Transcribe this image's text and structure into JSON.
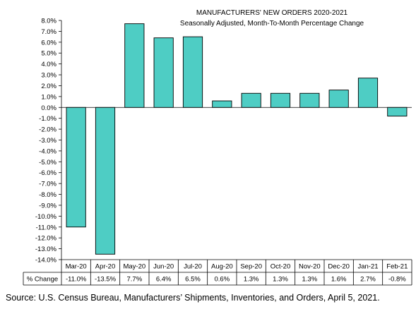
{
  "chart_data": {
    "type": "bar",
    "title": "MANUFACTURERS' NEW ORDERS 2020-2021",
    "subtitle": "Seasonally Adjusted,  Month-To-Month Percentage Change",
    "categories": [
      "Mar-20",
      "Apr-20",
      "May-20",
      "Jun-20",
      "Jul-20",
      "Aug-20",
      "Sep-20",
      "Oct-20",
      "Nov-20",
      "Dec-20",
      "Jan-21",
      "Feb-21"
    ],
    "values": [
      -11.0,
      -13.5,
      7.7,
      6.4,
      6.5,
      0.6,
      1.3,
      1.3,
      1.3,
      1.6,
      2.7,
      -0.8
    ],
    "value_labels": [
      "-11.0%",
      "-13.5%",
      "7.7%",
      "6.4%",
      "6.5%",
      "0.6%",
      "1.3%",
      "1.3%",
      "1.3%",
      "1.6%",
      "2.7%",
      "-0.8%"
    ],
    "ylim": [
      -14.0,
      8.0
    ],
    "ytick_step": 1.0,
    "ytick_format": "percent_1dp",
    "grid": false,
    "bar_color": "#4ECDC4",
    "bar_edge_color": "#000000",
    "table_row_label": "% Change"
  },
  "source_note": "Source: U.S. Census Bureau, Manufacturers’ Shipments, Inventories, and Orders, April 5, 2021."
}
